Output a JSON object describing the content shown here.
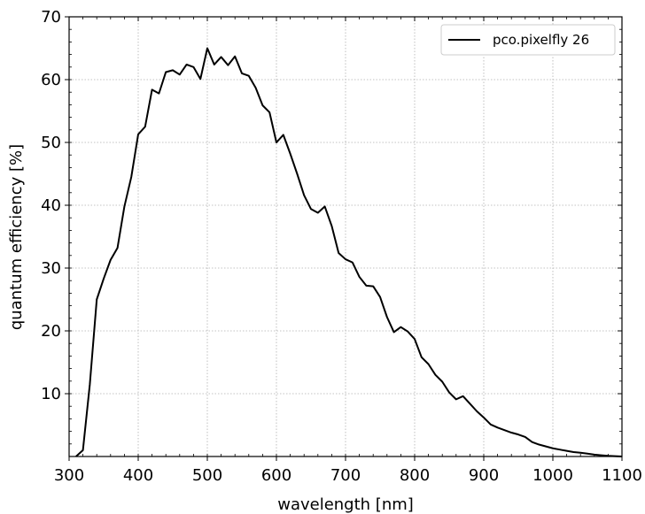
{
  "chart_data": {
    "type": "line",
    "title": "",
    "xlabel": "wavelength [nm]",
    "ylabel": "quantum efficiency [%]",
    "xlim": [
      300,
      1100
    ],
    "ylim": [
      0,
      70
    ],
    "xticks": [
      300,
      400,
      500,
      600,
      700,
      800,
      900,
      1000,
      1100
    ],
    "yticks": [
      10,
      20,
      30,
      40,
      50,
      60,
      70
    ],
    "xtick_labels": [
      "300",
      "400",
      "500",
      "600",
      "700",
      "800",
      "900",
      "1000",
      "1100"
    ],
    "ytick_labels": [
      "10",
      "20",
      "30",
      "40",
      "50",
      "60",
      "70"
    ],
    "grid": true,
    "legend_position": "top-right",
    "series": [
      {
        "name": "pco.pixelfly 26",
        "color": "#000000",
        "x": [
          310,
          320,
          330,
          340,
          350,
          360,
          370,
          380,
          390,
          400,
          410,
          420,
          430,
          440,
          450,
          460,
          470,
          480,
          490,
          500,
          510,
          520,
          530,
          540,
          550,
          560,
          570,
          580,
          590,
          600,
          610,
          620,
          630,
          640,
          650,
          660,
          670,
          680,
          690,
          700,
          710,
          720,
          730,
          740,
          750,
          760,
          770,
          780,
          790,
          800,
          810,
          820,
          830,
          840,
          850,
          860,
          870,
          880,
          890,
          900,
          910,
          920,
          930,
          940,
          950,
          960,
          970,
          980,
          990,
          1000,
          1010,
          1020,
          1030,
          1040,
          1050,
          1060,
          1070,
          1080,
          1090,
          1100
        ],
        "y": [
          0.0,
          1.0,
          11.5,
          25.0,
          28.3,
          31.3,
          33.2,
          39.8,
          44.5,
          51.3,
          52.5,
          58.4,
          57.8,
          61.2,
          61.5,
          60.8,
          62.4,
          62.0,
          60.1,
          65.0,
          62.4,
          63.6,
          62.3,
          63.7,
          61.0,
          60.6,
          58.7,
          55.9,
          54.8,
          50.0,
          51.2,
          48.2,
          45.0,
          41.6,
          39.4,
          38.8,
          39.8,
          36.7,
          32.4,
          31.4,
          30.9,
          28.6,
          27.2,
          27.1,
          25.4,
          22.2,
          19.8,
          20.6,
          19.9,
          18.7,
          15.8,
          14.7,
          13.0,
          11.9,
          10.2,
          9.1,
          9.6,
          8.4,
          7.2,
          6.2,
          5.1,
          4.6,
          4.2,
          3.8,
          3.5,
          3.1,
          2.3,
          1.9,
          1.6,
          1.3,
          1.1,
          0.9,
          0.7,
          0.6,
          0.45,
          0.3,
          0.2,
          0.1,
          0.05,
          0.0
        ]
      }
    ]
  }
}
